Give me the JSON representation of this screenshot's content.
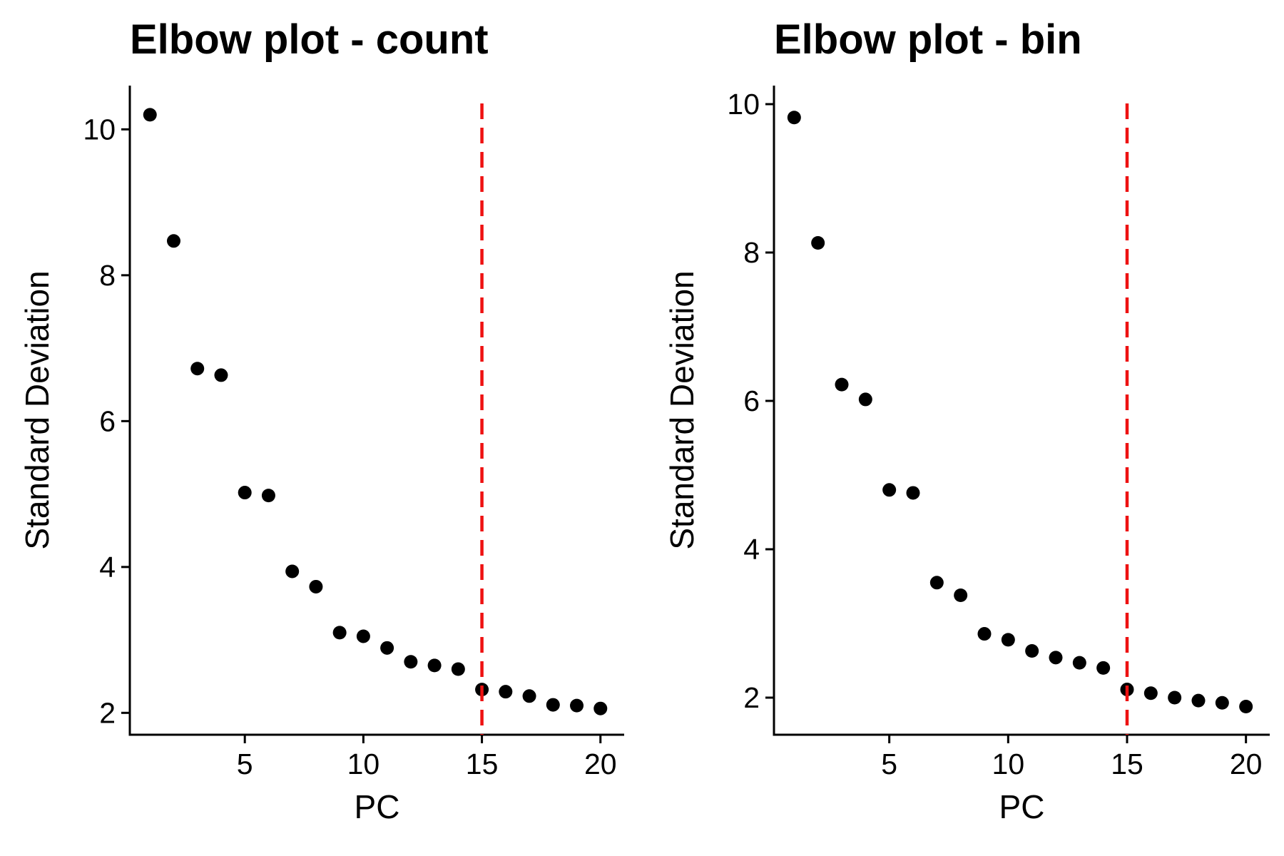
{
  "chart_data": [
    {
      "type": "scatter",
      "title": "Elbow plot - count",
      "xlabel": "PC",
      "ylabel": "Standard Deviation",
      "xlim": [
        0.15,
        21
      ],
      "ylim": [
        1.7,
        10.6
      ],
      "xticks": [
        5,
        10,
        15,
        20
      ],
      "yticks": [
        2,
        4,
        6,
        8,
        10
      ],
      "grid": false,
      "vline": {
        "x": 15,
        "color": "#ee1111"
      },
      "x": [
        1,
        2,
        3,
        4,
        5,
        6,
        7,
        8,
        9,
        10,
        11,
        12,
        13,
        14,
        15,
        16,
        17,
        18,
        19,
        20
      ],
      "y": [
        10.2,
        8.47,
        6.72,
        6.63,
        5.02,
        4.98,
        3.94,
        3.73,
        3.1,
        3.05,
        2.89,
        2.7,
        2.65,
        2.6,
        2.32,
        2.29,
        2.23,
        2.11,
        2.1,
        2.06
      ],
      "point_color": "#000000"
    },
    {
      "type": "scatter",
      "title": "Elbow plot - bin",
      "xlabel": "PC",
      "ylabel": "Standard Deviation",
      "xlim": [
        0.15,
        21
      ],
      "ylim": [
        1.5,
        10.25
      ],
      "xticks": [
        5,
        10,
        15,
        20
      ],
      "yticks": [
        2,
        4,
        6,
        8,
        10
      ],
      "grid": false,
      "vline": {
        "x": 15,
        "color": "#ee1111"
      },
      "x": [
        1,
        2,
        3,
        4,
        5,
        6,
        7,
        8,
        9,
        10,
        11,
        12,
        13,
        14,
        15,
        16,
        17,
        18,
        19,
        20
      ],
      "y": [
        9.82,
        8.13,
        6.22,
        6.02,
        4.8,
        4.76,
        3.55,
        3.38,
        2.86,
        2.78,
        2.63,
        2.54,
        2.47,
        2.4,
        2.11,
        2.06,
        2.0,
        1.96,
        1.93,
        1.88
      ],
      "point_color": "#000000"
    }
  ]
}
